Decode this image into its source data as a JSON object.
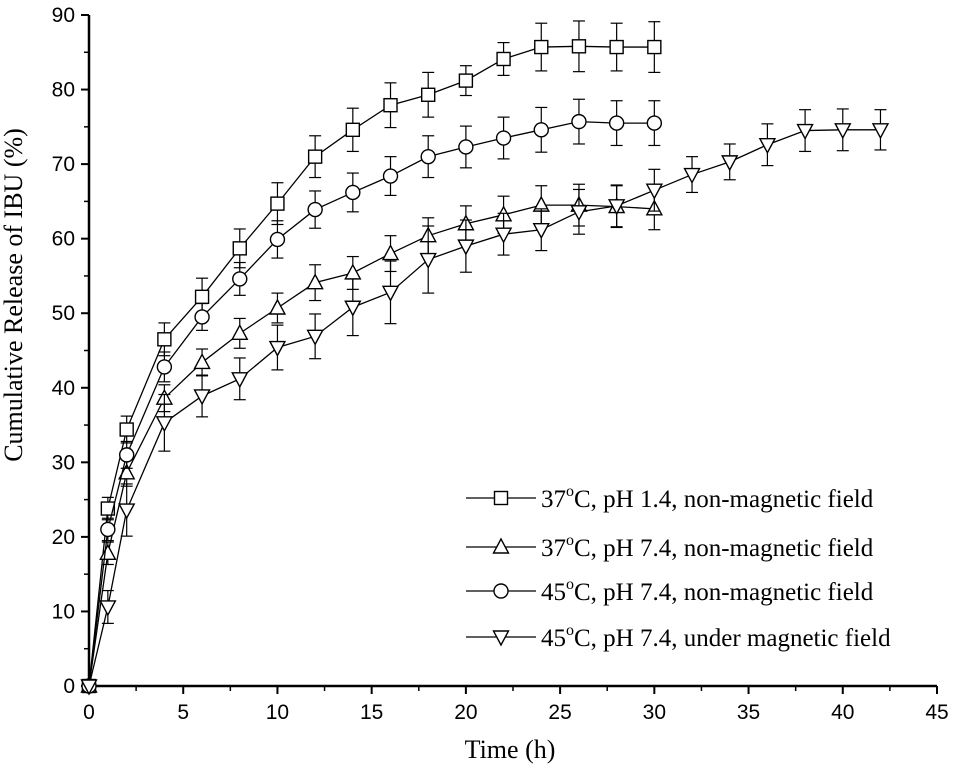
{
  "chart_data": {
    "type": "line",
    "xlabel": "Time (h)",
    "ylabel": "Cumulative Release of IBU (%)",
    "xlim": [
      0,
      45
    ],
    "ylim": [
      0,
      90
    ],
    "xticks": [
      0,
      5,
      10,
      15,
      20,
      25,
      30,
      35,
      40,
      45
    ],
    "yticks": [
      0,
      10,
      20,
      30,
      40,
      50,
      60,
      70,
      80,
      90
    ],
    "grid": false,
    "legend_position": "bottom-right",
    "series": [
      {
        "name_parts": [
          "37",
          "o",
          "C, pH 1.4, non-magnetic field"
        ],
        "marker": "square",
        "x": [
          0,
          1,
          2,
          4,
          6,
          8,
          10,
          12,
          14,
          16,
          18,
          20,
          22,
          24,
          26,
          28,
          30
        ],
        "y": [
          0,
          23.8,
          34.4,
          46.5,
          52.2,
          58.7,
          64.7,
          71.0,
          74.6,
          77.9,
          79.3,
          81.2,
          84.1,
          85.7,
          85.8,
          85.7,
          85.7
        ],
        "err": [
          0,
          1.5,
          1.8,
          2.2,
          2.5,
          2.6,
          2.8,
          2.8,
          2.9,
          3.0,
          3.0,
          2.0,
          2.2,
          3.2,
          3.4,
          3.2,
          3.4
        ]
      },
      {
        "name_parts": [
          "37",
          "o",
          "C, pH 7.4, non-magnetic field"
        ],
        "marker": "triangle-up",
        "x": [
          0,
          1,
          2,
          4,
          6,
          8,
          10,
          12,
          14,
          16,
          18,
          20,
          22,
          24,
          26,
          28,
          30
        ],
        "y": [
          0,
          17.8,
          28.6,
          38.6,
          43.4,
          47.3,
          50.7,
          54.1,
          55.4,
          58.0,
          60.4,
          62.0,
          63.2,
          64.5,
          64.5,
          64.3,
          64.0
        ],
        "err": [
          0,
          1.5,
          1.8,
          1.8,
          1.8,
          2.0,
          2.0,
          2.4,
          2.2,
          2.4,
          2.4,
          2.4,
          2.5,
          2.6,
          2.8,
          2.8,
          2.8
        ]
      },
      {
        "name_parts": [
          "45",
          "o",
          "C, pH 7.4, non-magnetic field"
        ],
        "marker": "circle",
        "x": [
          0,
          1,
          2,
          4,
          6,
          8,
          10,
          12,
          14,
          16,
          18,
          20,
          22,
          24,
          26,
          28,
          30
        ],
        "y": [
          0,
          21.0,
          31.0,
          42.8,
          49.5,
          54.6,
          59.9,
          63.9,
          66.2,
          68.4,
          71.0,
          72.3,
          73.5,
          74.6,
          75.7,
          75.5,
          75.5
        ],
        "err": [
          0,
          1.5,
          1.8,
          2.0,
          1.8,
          2.2,
          2.5,
          2.5,
          2.6,
          2.6,
          2.8,
          2.8,
          2.8,
          3.0,
          3.0,
          3.0,
          3.0
        ]
      },
      {
        "name_parts": [
          "45",
          "o",
          "C, pH 7.4, under magnetic field"
        ],
        "marker": "triangle-down",
        "x": [
          0,
          1,
          2,
          4,
          6,
          8,
          10,
          12,
          14,
          16,
          18,
          20,
          22,
          24,
          26,
          28,
          30,
          32,
          34,
          36,
          38,
          40,
          42
        ],
        "y": [
          0,
          10.6,
          23.6,
          35.3,
          38.9,
          41.2,
          45.4,
          46.9,
          50.8,
          52.8,
          57.2,
          59.0,
          60.6,
          61.2,
          63.6,
          64.4,
          66.5,
          68.6,
          70.3,
          72.6,
          74.5,
          74.6,
          74.6
        ],
        "err": [
          0,
          2.2,
          3.5,
          3.8,
          2.8,
          2.8,
          3.0,
          3.0,
          3.8,
          4.2,
          4.5,
          3.5,
          2.8,
          2.8,
          3.0,
          2.8,
          2.8,
          2.4,
          2.4,
          2.8,
          2.8,
          2.8,
          2.7
        ]
      }
    ]
  }
}
